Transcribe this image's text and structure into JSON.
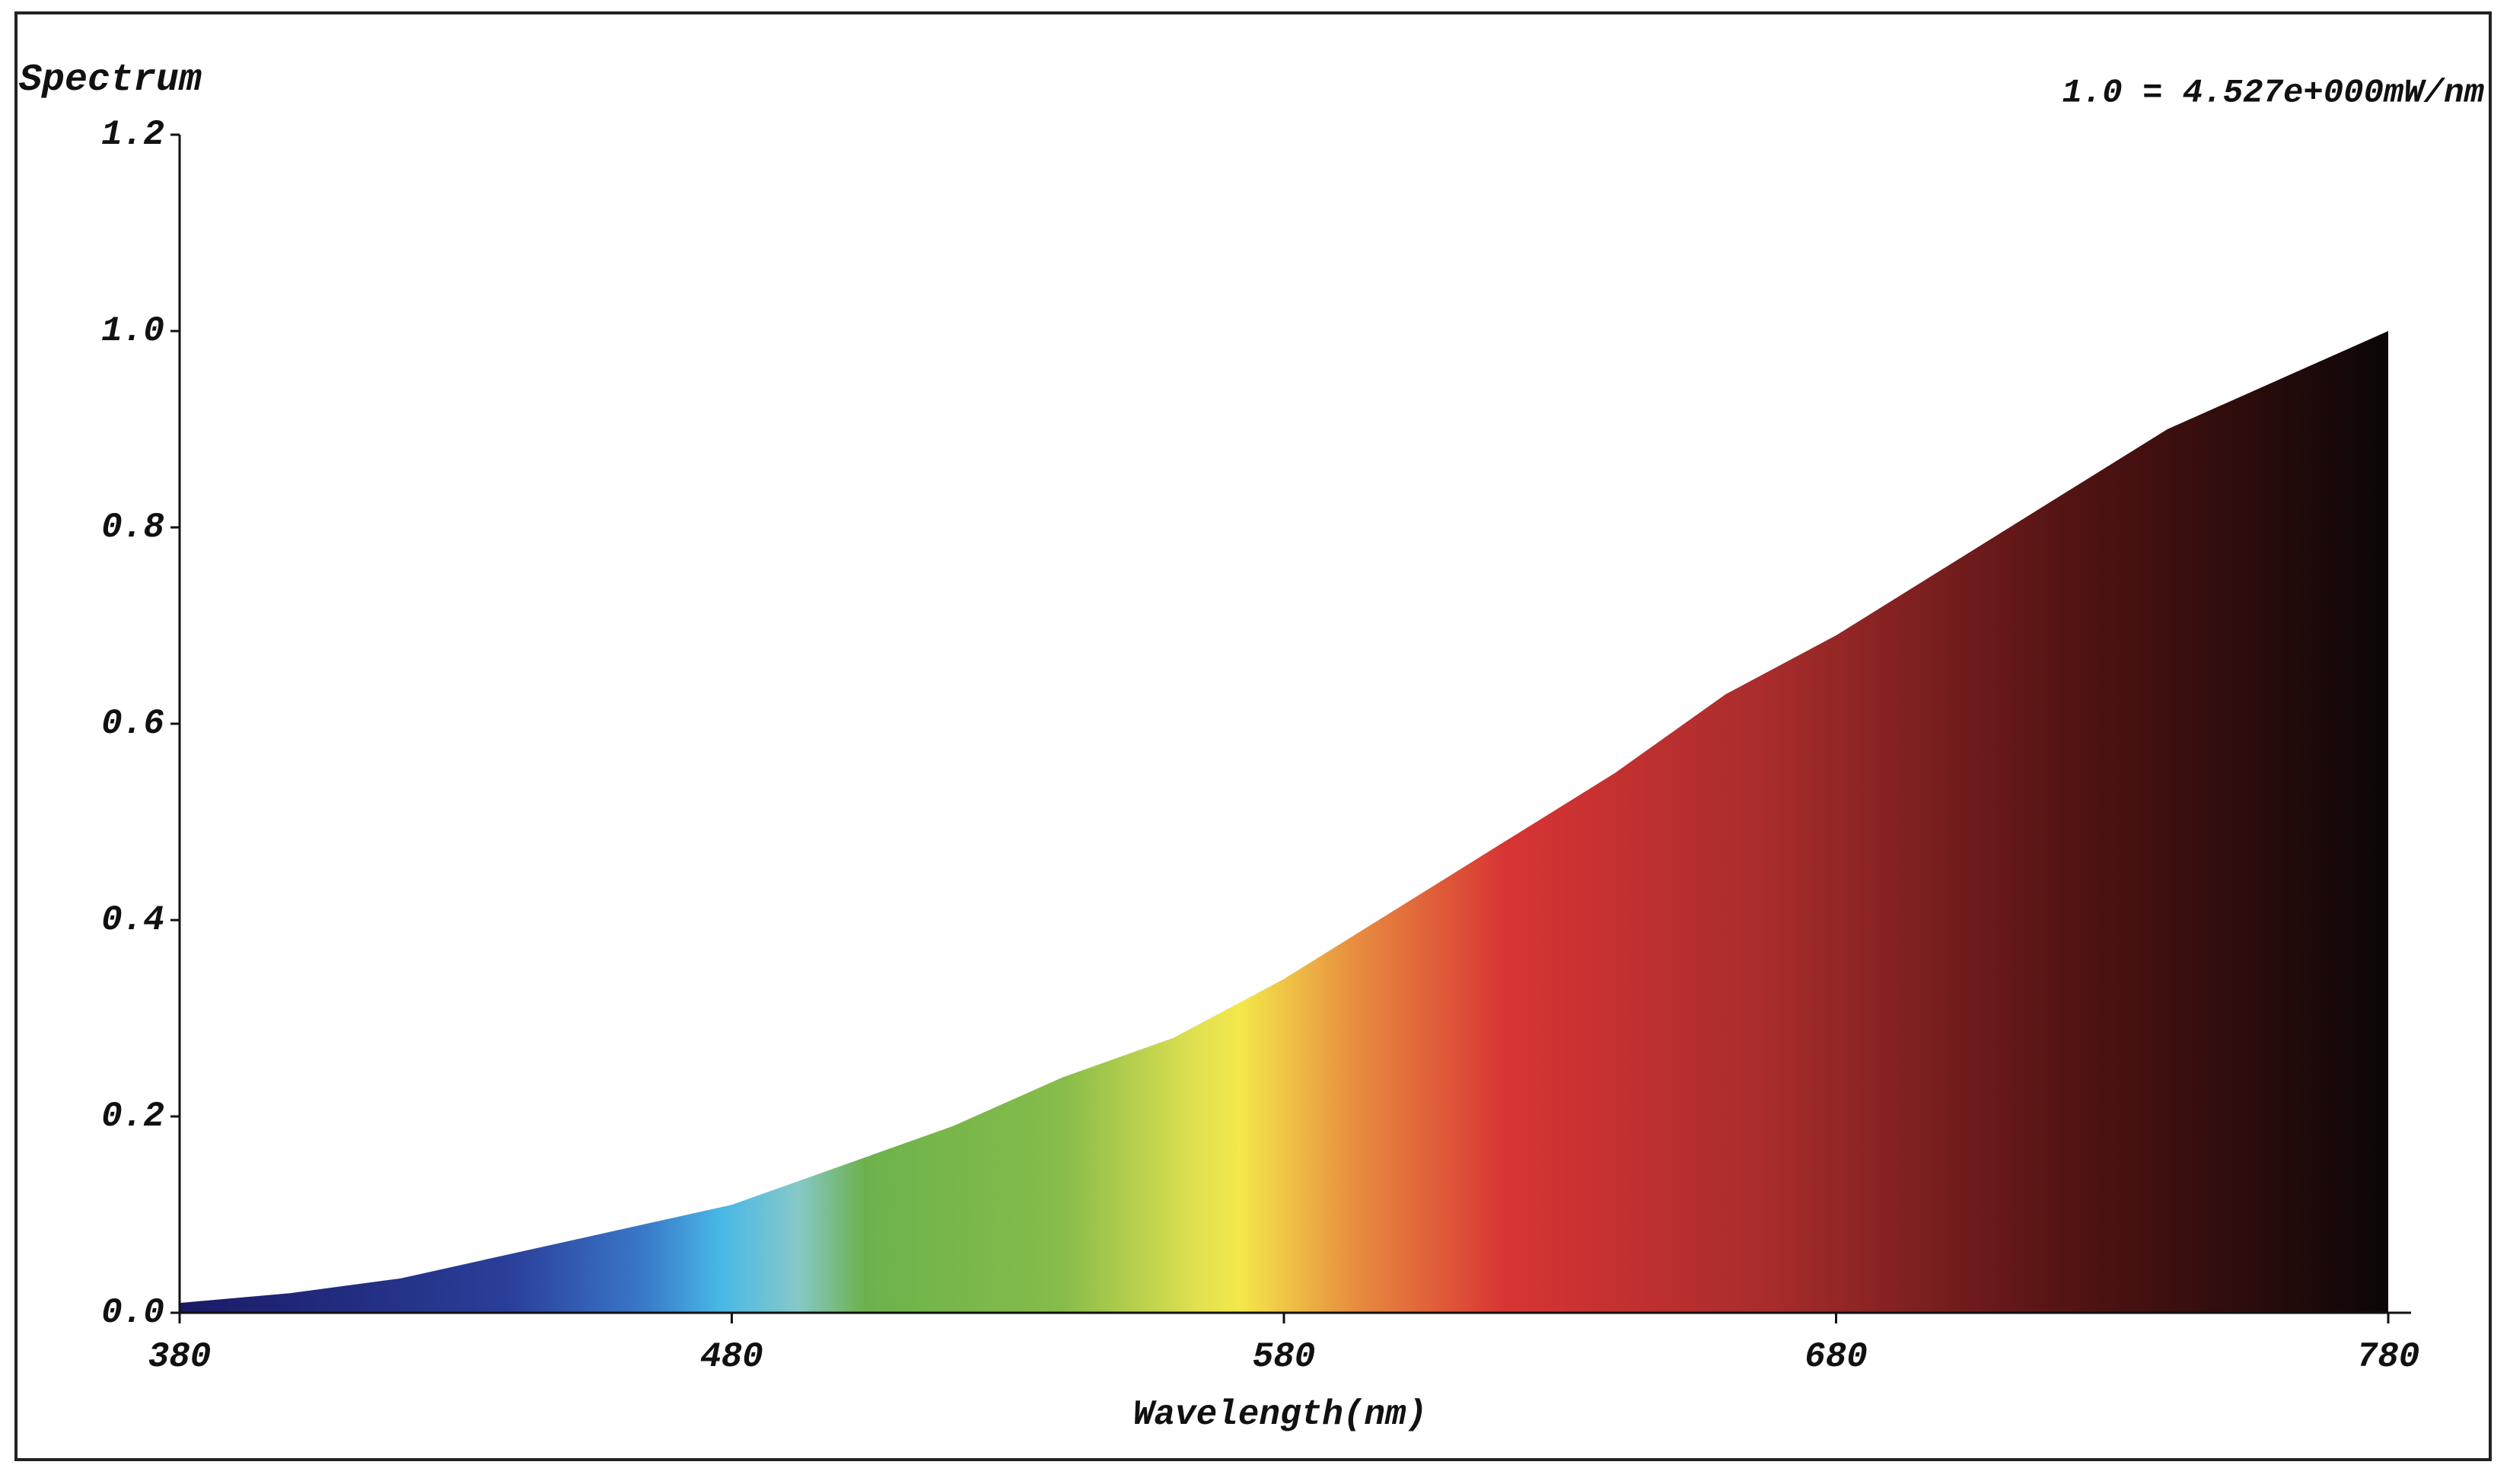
{
  "chart_data": {
    "type": "area",
    "title": "Spectrum",
    "annotation": "1.0 = 4.527e+000mW/nm",
    "x_label": "Wavelength(nm)",
    "x": [
      380,
      400,
      420,
      440,
      460,
      480,
      500,
      520,
      540,
      560,
      580,
      600,
      620,
      640,
      660,
      680,
      700,
      720,
      740,
      760,
      780
    ],
    "values": [
      0.01,
      0.02,
      0.035,
      0.06,
      0.085,
      0.11,
      0.15,
      0.19,
      0.24,
      0.28,
      0.34,
      0.41,
      0.48,
      0.55,
      0.63,
      0.69,
      0.76,
      0.83,
      0.9,
      0.95,
      1.0
    ],
    "xlim": [
      380,
      780
    ],
    "xticks": [
      380,
      480,
      580,
      680,
      780
    ],
    "ylim": [
      0,
      1.2
    ],
    "yticks": [
      {
        "value": 0,
        "label": "0.0"
      },
      0.2,
      0.4,
      0.6,
      0.8,
      {
        "value": 1,
        "label": "1.0"
      },
      1.2
    ]
  }
}
